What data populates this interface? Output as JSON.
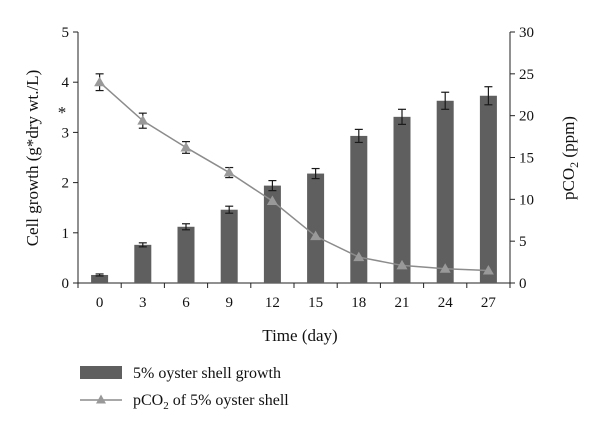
{
  "chart_data": {
    "type": "bar",
    "categories": [
      "0",
      "3",
      "6",
      "9",
      "12",
      "15",
      "18",
      "21",
      "24",
      "27"
    ],
    "xlabel": "Time (day)",
    "ylabel_left": "Cell growth (g*dry wt./L)",
    "ylabel_right_main": "pCO",
    "ylabel_right_sub": "2",
    "ylabel_right_tail": " (ppm)",
    "ylim_left": [
      0,
      5
    ],
    "ylim_right": [
      0,
      30
    ],
    "yticks_left": [
      "0",
      "1",
      "2",
      "3",
      "4",
      "5"
    ],
    "yticks_right": [
      "0",
      "5",
      "10",
      "15",
      "20",
      "25",
      "30"
    ],
    "annotation": "*",
    "grid": false,
    "legend_position": "bottom-left",
    "series": [
      {
        "name": "5% oyster shell growth",
        "kind": "bar",
        "axis": "left",
        "color": "#5f5f5f",
        "values": [
          0.16,
          0.76,
          1.12,
          1.46,
          1.94,
          2.18,
          2.93,
          3.31,
          3.63,
          3.73
        ],
        "errors": [
          0.02,
          0.04,
          0.06,
          0.07,
          0.1,
          0.1,
          0.13,
          0.15,
          0.17,
          0.18
        ]
      },
      {
        "name_main": "pCO",
        "name_sub": "2",
        "name_tail": " of 5% oyster shell",
        "kind": "line",
        "axis": "right",
        "color": "#8c8c8c",
        "values": [
          24.0,
          19.4,
          16.2,
          13.2,
          9.8,
          5.6,
          3.1,
          2.1,
          1.7,
          1.5
        ],
        "errors": [
          1.0,
          0.9,
          0.7,
          0.6,
          0.0,
          0.0,
          0.0,
          0.0,
          0.0,
          0.0
        ]
      }
    ]
  }
}
